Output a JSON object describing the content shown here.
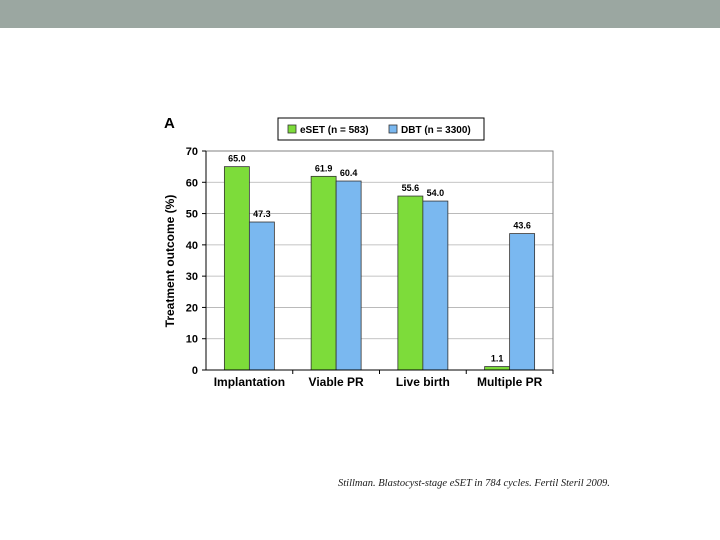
{
  "slide": {
    "citation": "Stillman. Blastocyst-stage eSET in 784 cycles. Fertil Steril 2009."
  },
  "colors": {
    "top_bar": "#9ba7a1",
    "series_1": "#7ddc3a",
    "series_2": "#7ab8f0",
    "gridline": "#b0b0b0"
  },
  "chart_data": {
    "type": "bar",
    "panel_label": "A",
    "title": "",
    "xlabel": "",
    "ylabel": "Treatment outcome (%)",
    "ylim": [
      0,
      70
    ],
    "yticks": [
      0,
      10,
      20,
      30,
      40,
      50,
      60,
      70
    ],
    "grid": true,
    "legend_position": "top",
    "categories": [
      "Implantation",
      "Viable PR",
      "Live birth",
      "Multiple PR"
    ],
    "series": [
      {
        "name": "eSET (n = 583)",
        "values": [
          65.0,
          61.9,
          55.6,
          1.1
        ],
        "labels": [
          "65.0",
          "61.9",
          "55.6",
          "1.1"
        ]
      },
      {
        "name": "DBT (n = 3300)",
        "values": [
          47.3,
          60.4,
          54.0,
          43.6
        ],
        "labels": [
          "47.3",
          "60.4",
          "54.0",
          "43.6"
        ]
      }
    ]
  }
}
